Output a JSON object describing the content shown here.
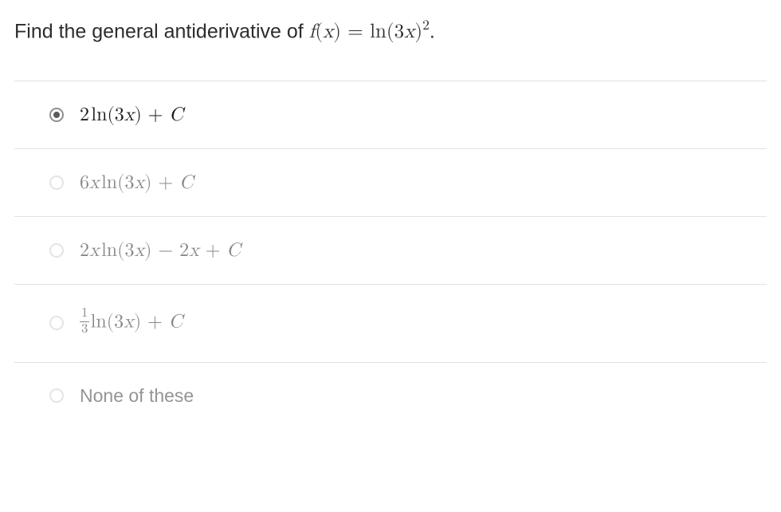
{
  "question": {
    "prefix": "Find the general antiderivative of ",
    "f": "f",
    "open": "(",
    "x": "x",
    "close": ")",
    "eq": " = ",
    "ln": "ln",
    "three": "3",
    "exp": "2",
    "dot": "."
  },
  "options": [
    {
      "selected": true,
      "faded": false,
      "type": "math",
      "parts": {
        "coef": "2",
        "ln": "ln",
        "open": "(",
        "three": "3",
        "x": "x",
        "close": ")",
        "plus": " + ",
        "C": "C"
      }
    },
    {
      "selected": false,
      "faded": true,
      "type": "math",
      "parts": {
        "coef": "6",
        "xcoef": "x",
        "ln": "ln",
        "open": "(",
        "three": "3",
        "x": "x",
        "close": ")",
        "plus": " + ",
        "C": "C"
      }
    },
    {
      "selected": false,
      "faded": true,
      "type": "math",
      "parts": {
        "coef": "2",
        "xcoef": "x",
        "ln": "ln",
        "open": "(",
        "three": "3",
        "x": "x",
        "close": ")",
        "minus": " − ",
        "two2": "2",
        "x2": "x",
        "plus": " + ",
        "C": "C"
      }
    },
    {
      "selected": false,
      "faded": true,
      "type": "math_frac",
      "parts": {
        "num": "1",
        "den": "3",
        "ln": "ln",
        "open": "(",
        "three": "3",
        "x": "x",
        "close": ")",
        "plus": " + ",
        "C": "C"
      }
    },
    {
      "selected": false,
      "faded": true,
      "type": "text",
      "text": "None of these"
    }
  ],
  "colors": {
    "border": "#e2e2e2",
    "text": "#2d2d2d",
    "radio_border": "#cfcfcf",
    "radio_selected": "#5a5a5a"
  }
}
